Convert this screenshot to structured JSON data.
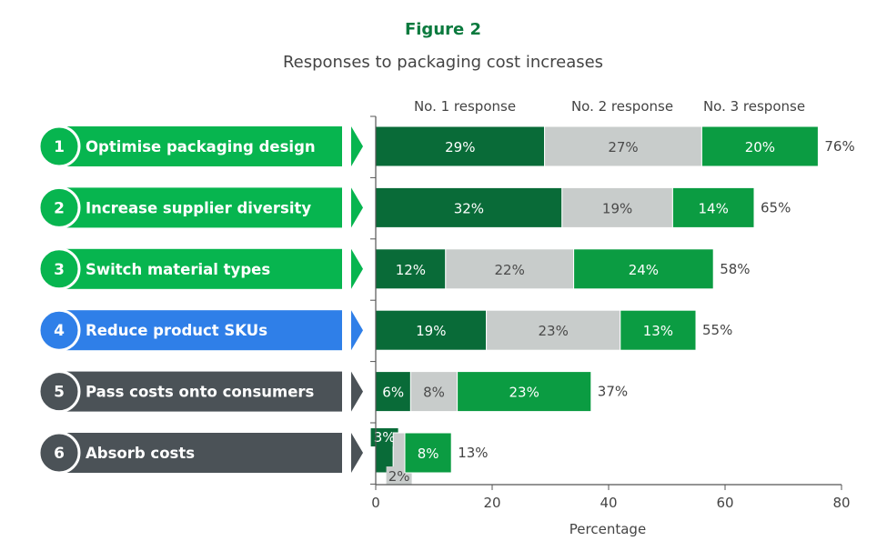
{
  "figure_label": "Figure 2",
  "colors": {
    "title_green": "#0b7a3e",
    "no1": "#096b38",
    "no2": "#c8cccb",
    "no3": "#0b9c42",
    "label_green": "#07b54f",
    "label_blue": "#2f7fe8",
    "label_dark": "#4b5257",
    "axis": "#555555",
    "text": "#333333"
  },
  "chart_data": {
    "type": "bar",
    "orientation": "horizontal",
    "stacked": true,
    "title": "Responses to packaging cost increases",
    "xlabel": "Percentage",
    "ylabel": "",
    "xlim": [
      0,
      80
    ],
    "xticks": [
      "0",
      "20",
      "40",
      "60",
      "80"
    ],
    "grid": false,
    "legend_position": "top",
    "categories": [
      {
        "rank": "1",
        "label": "Optimise packaging design",
        "group": "green",
        "total": "76%"
      },
      {
        "rank": "2",
        "label": "Increase supplier diversity",
        "group": "green",
        "total": "65%"
      },
      {
        "rank": "3",
        "label": "Switch material types",
        "group": "green",
        "total": "58%"
      },
      {
        "rank": "4",
        "label": "Reduce product SKUs",
        "group": "blue",
        "total": "55%"
      },
      {
        "rank": "5",
        "label": "Pass costs onto consumers",
        "group": "dark",
        "total": "37%"
      },
      {
        "rank": "6",
        "label": "Absorb costs",
        "group": "dark",
        "total": "13%"
      }
    ],
    "series": [
      {
        "name": "No. 1 response",
        "values": [
          29,
          32,
          12,
          19,
          6,
          3
        ],
        "labels": [
          "29%",
          "32%",
          "12%",
          "19%",
          "6%",
          "3%"
        ]
      },
      {
        "name": "No. 2 response",
        "values": [
          27,
          19,
          22,
          23,
          8,
          2
        ],
        "labels": [
          "27%",
          "19%",
          "22%",
          "23%",
          "8%",
          "2%"
        ]
      },
      {
        "name": "No. 3 response",
        "values": [
          20,
          14,
          24,
          13,
          23,
          8
        ],
        "labels": [
          "20%",
          "14%",
          "24%",
          "13%",
          "23%",
          "8%"
        ]
      }
    ]
  }
}
